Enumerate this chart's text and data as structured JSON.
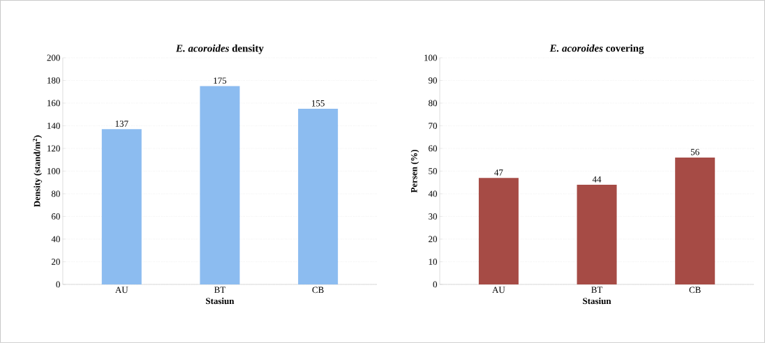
{
  "chart_data": [
    {
      "type": "bar",
      "title": "*E. acoroides* density",
      "xlabel": "Stasiun",
      "ylabel": "Density (stand/m$^{2}$)",
      "categories": [
        "AU",
        "BT",
        "CB"
      ],
      "values": [
        137,
        175,
        155
      ],
      "color": "#8cbcf0",
      "ylim": [
        0,
        200
      ],
      "yticks": [
        0,
        20,
        40,
        60,
        80,
        100,
        120,
        140,
        160,
        180,
        200
      ],
      "grid": "y",
      "data_labels": true
    },
    {
      "type": "bar",
      "title": "*E. acoroides* covering",
      "xlabel": "Stasiun",
      "ylabel": "Persen (%)",
      "categories": [
        "AU",
        "BT",
        "CB"
      ],
      "values": [
        47,
        44,
        56
      ],
      "color": "#a64b45",
      "ylim": [
        0,
        100
      ],
      "yticks": [
        0,
        10,
        20,
        30,
        40,
        50,
        60,
        70,
        80,
        90,
        100
      ],
      "grid": "y",
      "data_labels": true
    }
  ]
}
